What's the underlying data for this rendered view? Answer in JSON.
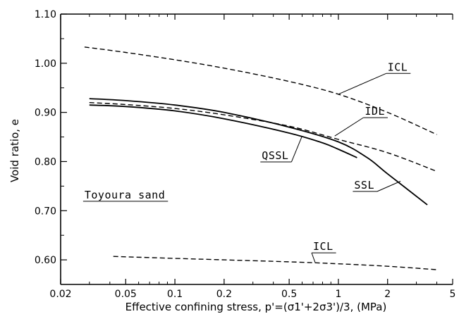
{
  "chart_data": {
    "type": "line",
    "title": "",
    "xlabel": "Effective confining stress,  p'=(σ1'+2σ3')/3, (MPa)",
    "ylabel": "Void ratio,  e",
    "xscale": "log",
    "xlim": [
      0.02,
      5
    ],
    "ylim": [
      0.55,
      1.1
    ],
    "x_ticks": [
      0.02,
      0.05,
      0.1,
      0.2,
      0.5,
      1,
      2,
      5
    ],
    "x_tick_labels": [
      "0.02",
      "0.05",
      "0.1",
      "0.2",
      "0.5",
      "1",
      "2",
      "5"
    ],
    "y_ticks": [
      0.6,
      0.7,
      0.8,
      0.9,
      1.0,
      1.1
    ],
    "y_tick_labels": [
      "0.60",
      "0.70",
      "0.80",
      "0.90",
      "1.00",
      "1.10"
    ],
    "grid": false,
    "legend": "none",
    "series": [
      {
        "name": "ICL",
        "style": "dashed",
        "x": [
          0.028,
          0.05,
          0.1,
          0.2,
          0.5,
          1.0,
          2.0,
          4.0
        ],
        "y": [
          1.033,
          1.022,
          1.007,
          0.99,
          0.963,
          0.937,
          0.9,
          0.855
        ]
      },
      {
        "name": "IDL",
        "style": "dashed",
        "x": [
          0.03,
          0.05,
          0.1,
          0.2,
          0.5,
          1.0,
          2.0,
          4.0
        ],
        "y": [
          0.92,
          0.916,
          0.908,
          0.895,
          0.872,
          0.845,
          0.818,
          0.78
        ]
      },
      {
        "name": "SSL",
        "style": "solid",
        "x": [
          0.03,
          0.05,
          0.1,
          0.2,
          0.5,
          1.0,
          1.5,
          2.0,
          3.5
        ],
        "y": [
          0.928,
          0.924,
          0.915,
          0.9,
          0.87,
          0.84,
          0.808,
          0.775,
          0.712
        ]
      },
      {
        "name": "QSSL",
        "style": "solid",
        "x": [
          0.03,
          0.05,
          0.1,
          0.2,
          0.5,
          0.8,
          1.0,
          1.3
        ],
        "y": [
          0.915,
          0.912,
          0.903,
          0.887,
          0.858,
          0.838,
          0.825,
          0.808
        ]
      },
      {
        "name": "ICL",
        "style": "dashed",
        "x": [
          0.042,
          0.1,
          0.2,
          0.5,
          1.0,
          2.0,
          4.0
        ],
        "y": [
          0.607,
          0.603,
          0.6,
          0.596,
          0.592,
          0.587,
          0.58
        ]
      }
    ],
    "annotations": [
      {
        "text": "ICL",
        "label_at": [
          2.0,
          0.985
        ],
        "points_to": [
          1.0,
          0.937
        ]
      },
      {
        "text": "IDL",
        "label_at": [
          1.45,
          0.895
        ],
        "points_to": [
          0.95,
          0.852
        ]
      },
      {
        "text": "QSSL",
        "label_at": [
          0.34,
          0.805
        ],
        "points_to": [
          0.6,
          0.852
        ]
      },
      {
        "text": "SSL",
        "label_at": [
          1.25,
          0.745
        ],
        "points_to": [
          2.4,
          0.76
        ]
      },
      {
        "text": "ICL",
        "label_at": [
          0.7,
          0.62
        ],
        "points_to": [
          0.72,
          0.595
        ]
      },
      {
        "text": "Toyoura sand",
        "label_at": [
          0.028,
          0.725
        ],
        "points_to": null
      }
    ]
  }
}
